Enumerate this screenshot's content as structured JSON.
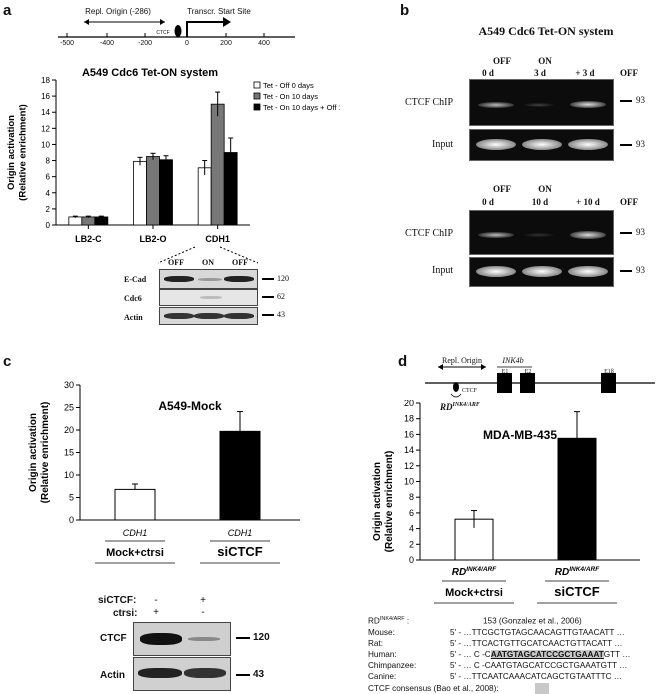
{
  "panel_a": {
    "letter": "a",
    "map": {
      "repl_origin": "Repl. Origin (-286)",
      "tss": "Transcr. Start Site",
      "ctcf": "CTCF",
      "ticks": [
        "-500",
        "-400",
        "-200",
        "0",
        "200",
        "400"
      ]
    },
    "gel_labels": [
      "OFF",
      "ON",
      "OFF"
    ],
    "blot_rows": [
      {
        "label": "E-Cad",
        "size": "120"
      },
      {
        "label": "Cdc6",
        "size": "62"
      },
      {
        "label": "Actin",
        "size": "43"
      }
    ]
  },
  "panel_b": {
    "letter": "b",
    "title": "A549 Cdc6 Tet-ON system",
    "top": {
      "cond": [
        "OFF",
        "ON",
        ""
      ],
      "time": [
        "0 d",
        "3 d",
        "+ 3 d"
      ],
      "extra": "OFF"
    },
    "bottom": {
      "cond": [
        "OFF",
        "ON",
        ""
      ],
      "time": [
        "0 d",
        "10 d",
        "+ 10 d"
      ],
      "extra": "OFF"
    },
    "row_chip": "CTCF ChIP",
    "row_input": "Input",
    "size": "93"
  },
  "panel_c": {
    "letter": "c",
    "blot_labels": {
      "sictcf": "siCTCF:",
      "ctrsi": "ctrsi:",
      "minus": "-",
      "plus": "+"
    },
    "blot_rows": [
      {
        "label": "CTCF",
        "size": "120"
      },
      {
        "label": "Actin",
        "size": "43"
      }
    ]
  },
  "panel_d": {
    "letter": "d",
    "map": {
      "repl_origin": "Repl. Origin",
      "gene": "INK4b",
      "exons": [
        "E1",
        "E2",
        "E1β"
      ],
      "ctcf": "CTCF",
      "rd": "RD",
      "rd_sup": "INK4/ARF"
    },
    "seq_header": {
      "label": "RD",
      "sup": "INK4/ARF",
      "colon": " :",
      "ref": "153 (Gonzalez et al., 2006)"
    },
    "seq_rows": [
      {
        "species": "Mouse:",
        "prefix": "5' - … ",
        "seq": "TTCGCTGTAGCAACAGTTGTAACATT …"
      },
      {
        "species": "Rat:",
        "prefix": "5' - … ",
        "seq": "TTCACTGTTGCATCAACTGTTACATT …"
      },
      {
        "species": "Human:",
        "prefix": "5' - … C -C",
        "seq": "AATGTAGCATCCGCTGAAAT",
        "suffix": "GTT …"
      },
      {
        "species": "Chimpanzee:",
        "prefix": "5' - … C -CAATGTAGCATCCGCTGAAATGTT …",
        "seq": ""
      },
      {
        "species": "Canine:",
        "prefix": "5' - … ",
        "seq": "TTCAATCAAACATCAGCTGTAATTTC …"
      }
    ],
    "consensus": "CTCF consensus (Bao et al., 2008):"
  },
  "chart_data": [
    {
      "id": "a",
      "type": "bar",
      "title": "A549 Cdc6 Tet-ON system",
      "ylabel": [
        "Origin activation",
        "(Relative enrichment)"
      ],
      "ylim": [
        0,
        18
      ],
      "yticks": [
        0,
        2,
        4,
        6,
        8,
        10,
        12,
        14,
        16,
        18
      ],
      "categories": [
        "LB2-C",
        "LB2-O",
        "CDH1"
      ],
      "series": [
        {
          "name": "Tet - Off 0 days",
          "color": "#ffffff",
          "values": [
            1.0,
            7.9,
            7.1
          ],
          "errors": [
            0.1,
            0.5,
            0.9
          ]
        },
        {
          "name": "Tet - On 10 days",
          "color": "#777777",
          "values": [
            1.0,
            8.5,
            15.0
          ],
          "errors": [
            0.1,
            0.4,
            1.5
          ]
        },
        {
          "name": "Tet - On 10 days + Off 10 days",
          "color": "#000000",
          "values": [
            1.0,
            8.1,
            9.0
          ],
          "errors": [
            0.1,
            0.5,
            1.8
          ]
        }
      ],
      "legend": "top-right",
      "grid": false
    },
    {
      "id": "c",
      "type": "bar",
      "title": "A549-Mock",
      "ylabel": [
        "Origin activation",
        "(Relative enrichment)"
      ],
      "ylim": [
        0,
        30
      ],
      "yticks": [
        0,
        5,
        10,
        15,
        20,
        25,
        30
      ],
      "categories": [
        "CDH1",
        "CDH1"
      ],
      "group_labels": [
        "Mock+ctrsi",
        "siCTCF"
      ],
      "values": [
        6.8,
        19.7
      ],
      "errors": [
        1.2,
        4.4
      ],
      "colors": [
        "#ffffff",
        "#000000"
      ],
      "grid": false
    },
    {
      "id": "d",
      "type": "bar",
      "title": "MDA-MB-435",
      "ylabel": [
        "Origin activation",
        "(Relative enrichment)"
      ],
      "ylim": [
        0,
        20
      ],
      "yticks": [
        0,
        2,
        4,
        6,
        8,
        10,
        12,
        14,
        16,
        18,
        20
      ],
      "categories": [
        "RD",
        "RD"
      ],
      "category_sup": "INK4/ARF",
      "group_labels": [
        "Mock+ctrsi",
        "siCTCF"
      ],
      "values": [
        5.2,
        15.5
      ],
      "errors": [
        1.1,
        3.4
      ],
      "colors": [
        "#ffffff",
        "#000000"
      ],
      "grid": false
    }
  ]
}
